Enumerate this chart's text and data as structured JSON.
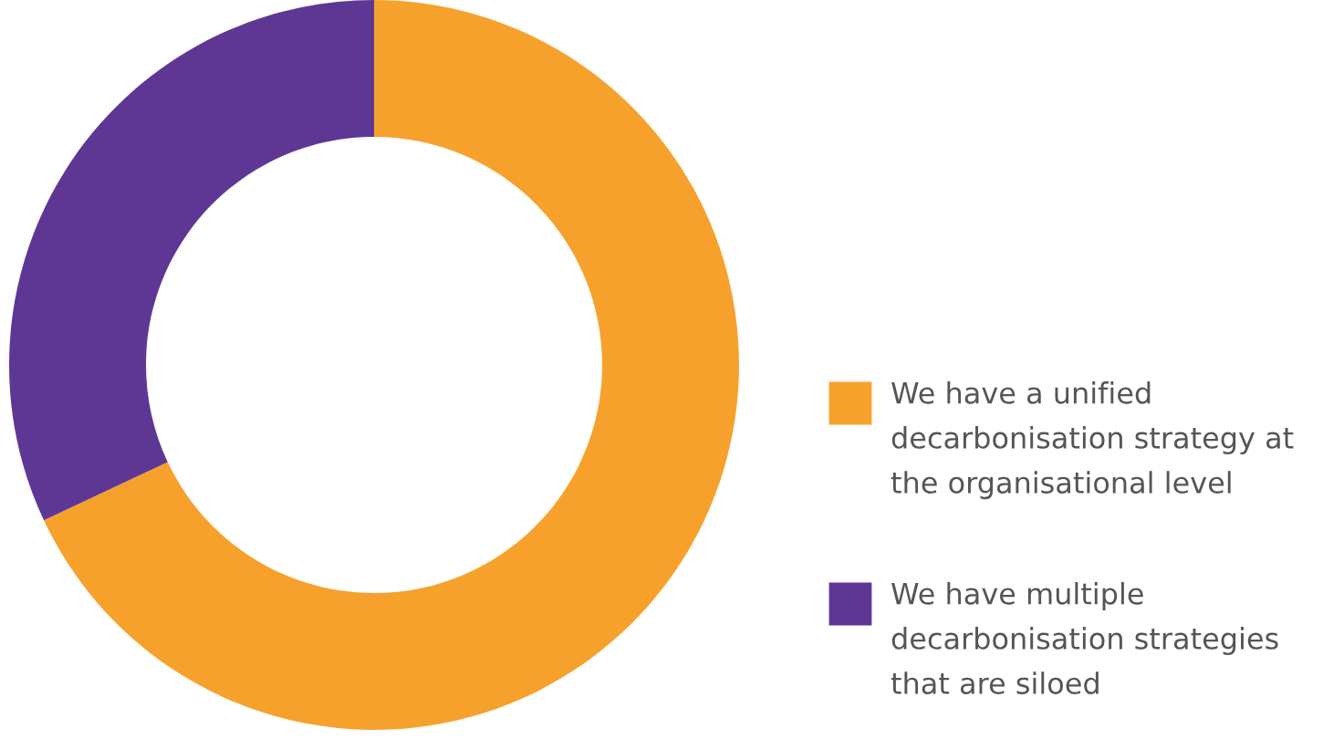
{
  "chart_data": {
    "type": "donut",
    "categories": [
      "We have a unified decarbonisation strategy at the organisational level",
      "We have multiple decarbonisation strategies that are siloed"
    ],
    "values": [
      68,
      32
    ],
    "colors": [
      "#f7a12d",
      "#5e3795"
    ],
    "legend": "right"
  }
}
